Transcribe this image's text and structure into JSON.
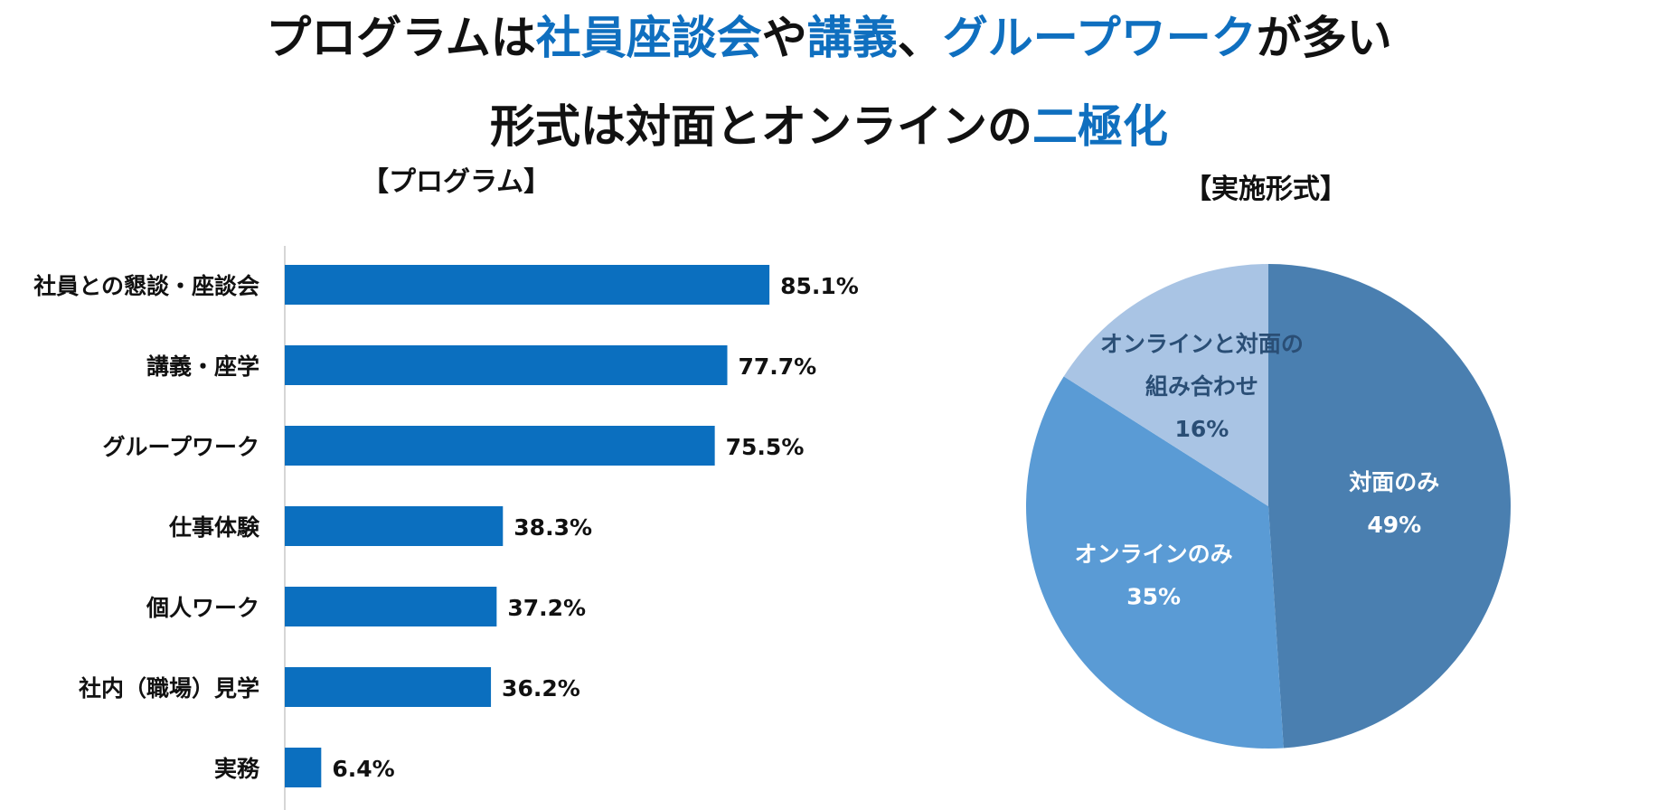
{
  "headline": {
    "line1": [
      {
        "text": "プログラムは",
        "highlight": false
      },
      {
        "text": "社員座談会",
        "highlight": true
      },
      {
        "text": "や",
        "highlight": false
      },
      {
        "text": "講義",
        "highlight": true
      },
      {
        "text": "、",
        "highlight": false
      },
      {
        "text": "グループワーク",
        "highlight": true
      },
      {
        "text": "が多い",
        "highlight": false
      }
    ],
    "line2": [
      {
        "text": "形式は対面とオンラインの",
        "highlight": false
      },
      {
        "text": "二極化",
        "highlight": true
      }
    ]
  },
  "colors": {
    "text": "#111111",
    "highlight": "#0f6fbf",
    "bar": "#0b6fbf",
    "axis": "#c8c8c8",
    "pie_in_person": "#4a7fb0",
    "pie_online": "#5a9bd5",
    "pie_hybrid": "#a9c4e4",
    "pie_label_dark": "#2a4e75",
    "pie_label_light": "#ffffff"
  },
  "chart_data": [
    {
      "type": "bar",
      "orientation": "horizontal",
      "title": "【プログラム】",
      "categories": [
        "社員との懇談・座談会",
        "講義・座学",
        "グループワーク",
        "仕事体験",
        "個人ワーク",
        "社内（職場）見学",
        "実務"
      ],
      "values": [
        85.1,
        77.7,
        75.5,
        38.3,
        37.2,
        36.2,
        6.4
      ],
      "value_labels": [
        "85.1%",
        "77.7%",
        "75.5%",
        "38.3%",
        "37.2%",
        "36.2%",
        "6.4%"
      ],
      "unit": "%",
      "xlim": [
        0,
        100
      ]
    },
    {
      "type": "pie",
      "title": "【実施形式】",
      "slices": [
        {
          "label_lines": [
            "対面のみ"
          ],
          "value": 49,
          "value_label": "49%",
          "color": "#4a7fb0",
          "label_color": "#ffffff"
        },
        {
          "label_lines": [
            "オンラインのみ"
          ],
          "value": 35,
          "value_label": "35%",
          "color": "#5a9bd5",
          "label_color": "#ffffff"
        },
        {
          "label_lines": [
            "オンラインと対面の",
            "組み合わせ"
          ],
          "value": 16,
          "value_label": "16%",
          "color": "#a9c4e4",
          "label_color": "#2a4e75"
        }
      ]
    }
  ]
}
